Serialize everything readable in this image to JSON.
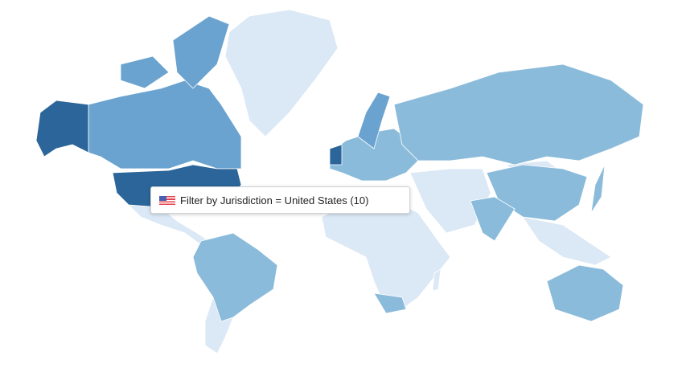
{
  "map": {
    "colors": {
      "highest": "#2b6599",
      "high": "#6aa3cf",
      "medium": "#8bbbdb",
      "low": "#dbe8f5"
    },
    "highlighted_region": "United States"
  },
  "tooltip": {
    "flag_icon": "us-flag-icon",
    "text": "Filter by Jurisdiction = United States (10)"
  }
}
